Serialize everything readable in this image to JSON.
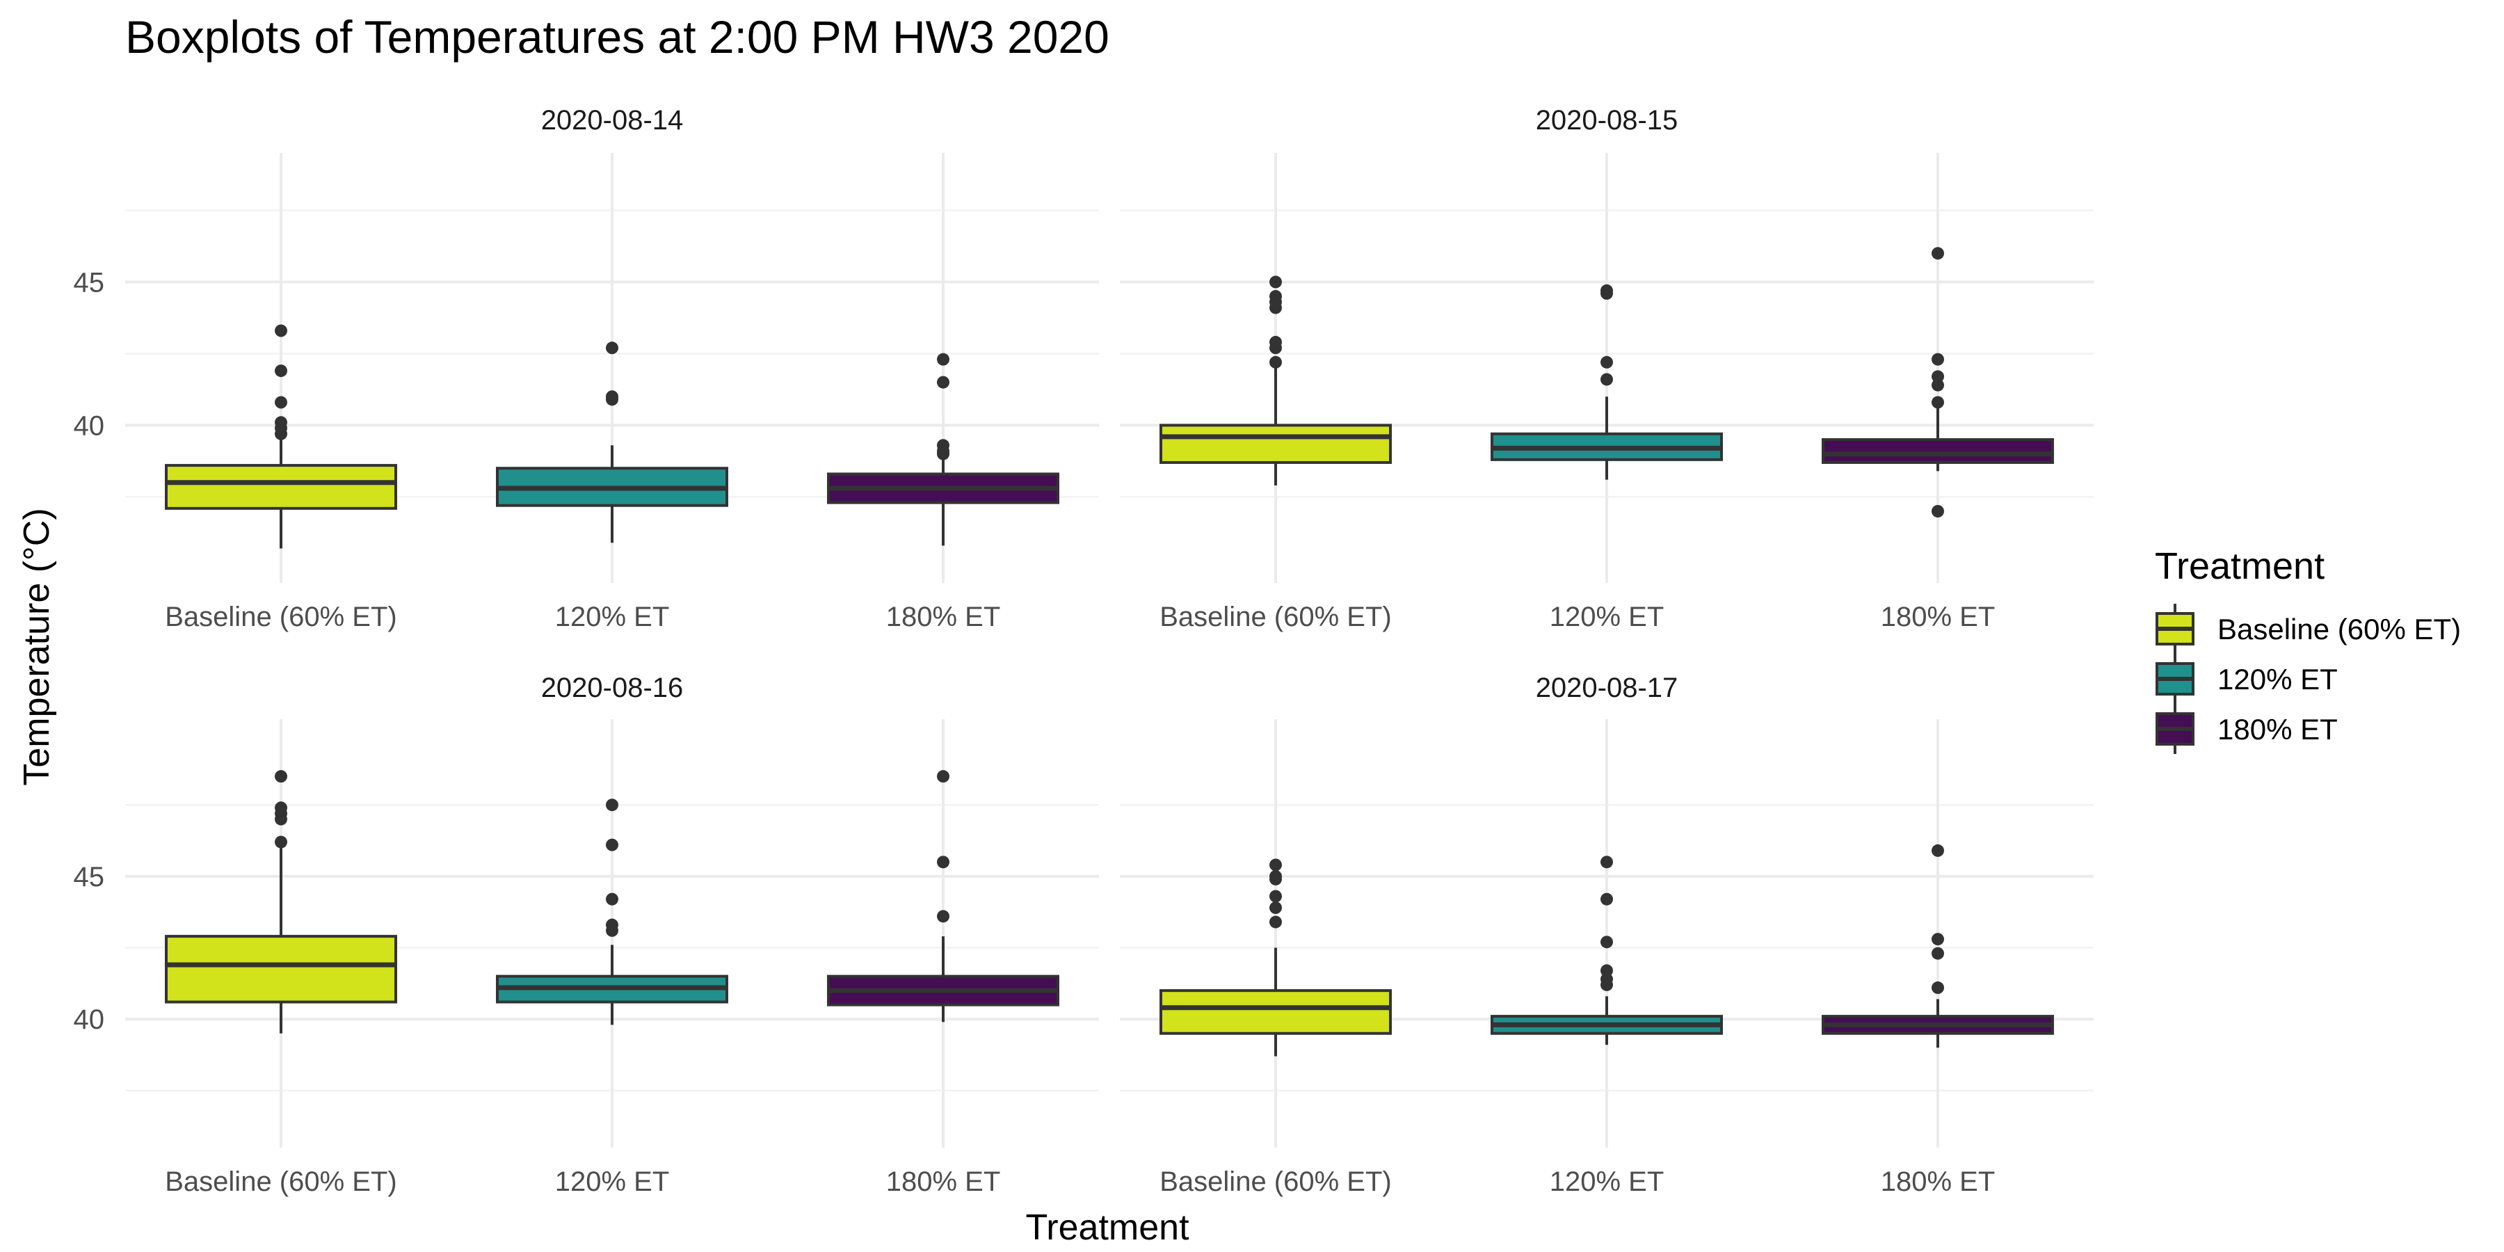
{
  "chart_data": {
    "type": "boxplot",
    "title": "Boxplots of Temperatures at 2:00 PM HW3 2020",
    "xlabel": "Treatment",
    "ylabel": "Temperature (°C)",
    "categories": [
      "Baseline (60% ET)",
      "120% ET",
      "180% ET"
    ],
    "legend": {
      "title": "Treatment",
      "placement": "right",
      "entries": [
        "Baseline (60% ET)",
        "120% ET",
        "180% ET"
      ]
    },
    "colors": [
      "#d2e21b",
      "#21908d",
      "#440d54"
    ],
    "grid": true,
    "rows": [
      {
        "ylim": [
          34.5,
          49.5
        ],
        "yticks": [
          40,
          45
        ]
      },
      {
        "ylim": [
          35.5,
          50.5
        ],
        "yticks": [
          40,
          45
        ]
      }
    ],
    "panels": [
      {
        "label": "2020-08-14",
        "boxes": [
          {
            "lower": 35.7,
            "q1": 37.1,
            "median": 38.0,
            "q3": 38.6,
            "upper": 39.5,
            "outliers": [
              39.7,
              39.9,
              40.1,
              40.8,
              41.9,
              43.3
            ]
          },
          {
            "lower": 35.9,
            "q1": 37.2,
            "median": 37.8,
            "q3": 38.5,
            "upper": 39.3,
            "outliers": [
              40.9,
              41.0,
              42.7
            ]
          },
          {
            "lower": 35.8,
            "q1": 37.3,
            "median": 37.8,
            "q3": 38.3,
            "upper": 38.8,
            "outliers": [
              39.0,
              39.1,
              39.3,
              41.5,
              42.3
            ]
          }
        ]
      },
      {
        "label": "2020-08-15",
        "boxes": [
          {
            "lower": 37.9,
            "q1": 38.7,
            "median": 39.6,
            "q3": 40.0,
            "upper": 42.0,
            "outliers": [
              42.2,
              42.7,
              42.9,
              44.1,
              44.3,
              44.5,
              45.0
            ]
          },
          {
            "lower": 38.1,
            "q1": 38.8,
            "median": 39.2,
            "q3": 39.7,
            "upper": 41.0,
            "outliers": [
              41.6,
              42.2,
              44.6,
              44.7
            ]
          },
          {
            "lower": 38.4,
            "q1": 38.7,
            "median": 39.0,
            "q3": 39.5,
            "upper": 40.7,
            "outliers": [
              37.0,
              40.8,
              41.4,
              41.7,
              42.3,
              46.0
            ]
          }
        ]
      },
      {
        "label": "2020-08-16",
        "boxes": [
          {
            "lower": 39.5,
            "q1": 40.6,
            "median": 41.9,
            "q3": 42.9,
            "upper": 46.2,
            "outliers": [
              46.2,
              47.0,
              47.2,
              47.4,
              48.5
            ]
          },
          {
            "lower": 39.8,
            "q1": 40.6,
            "median": 41.1,
            "q3": 41.5,
            "upper": 42.6,
            "outliers": [
              43.1,
              43.3,
              44.2,
              46.1,
              47.5
            ]
          },
          {
            "lower": 39.9,
            "q1": 40.5,
            "median": 41.0,
            "q3": 41.5,
            "upper": 42.9,
            "outliers": [
              43.6,
              45.5,
              48.5
            ]
          }
        ]
      },
      {
        "label": "2020-08-17",
        "boxes": [
          {
            "lower": 38.7,
            "q1": 39.5,
            "median": 40.4,
            "q3": 41.0,
            "upper": 42.5,
            "outliers": [
              43.4,
              43.9,
              44.3,
              44.9,
              45.0,
              45.4
            ]
          },
          {
            "lower": 39.1,
            "q1": 39.5,
            "median": 39.8,
            "q3": 40.1,
            "upper": 40.8,
            "outliers": [
              41.2,
              41.4,
              41.7,
              42.7,
              44.2,
              45.5
            ]
          },
          {
            "lower": 39.0,
            "q1": 39.5,
            "median": 39.8,
            "q3": 40.1,
            "upper": 40.7,
            "outliers": [
              41.1,
              42.3,
              42.8,
              45.9
            ]
          }
        ]
      }
    ]
  }
}
